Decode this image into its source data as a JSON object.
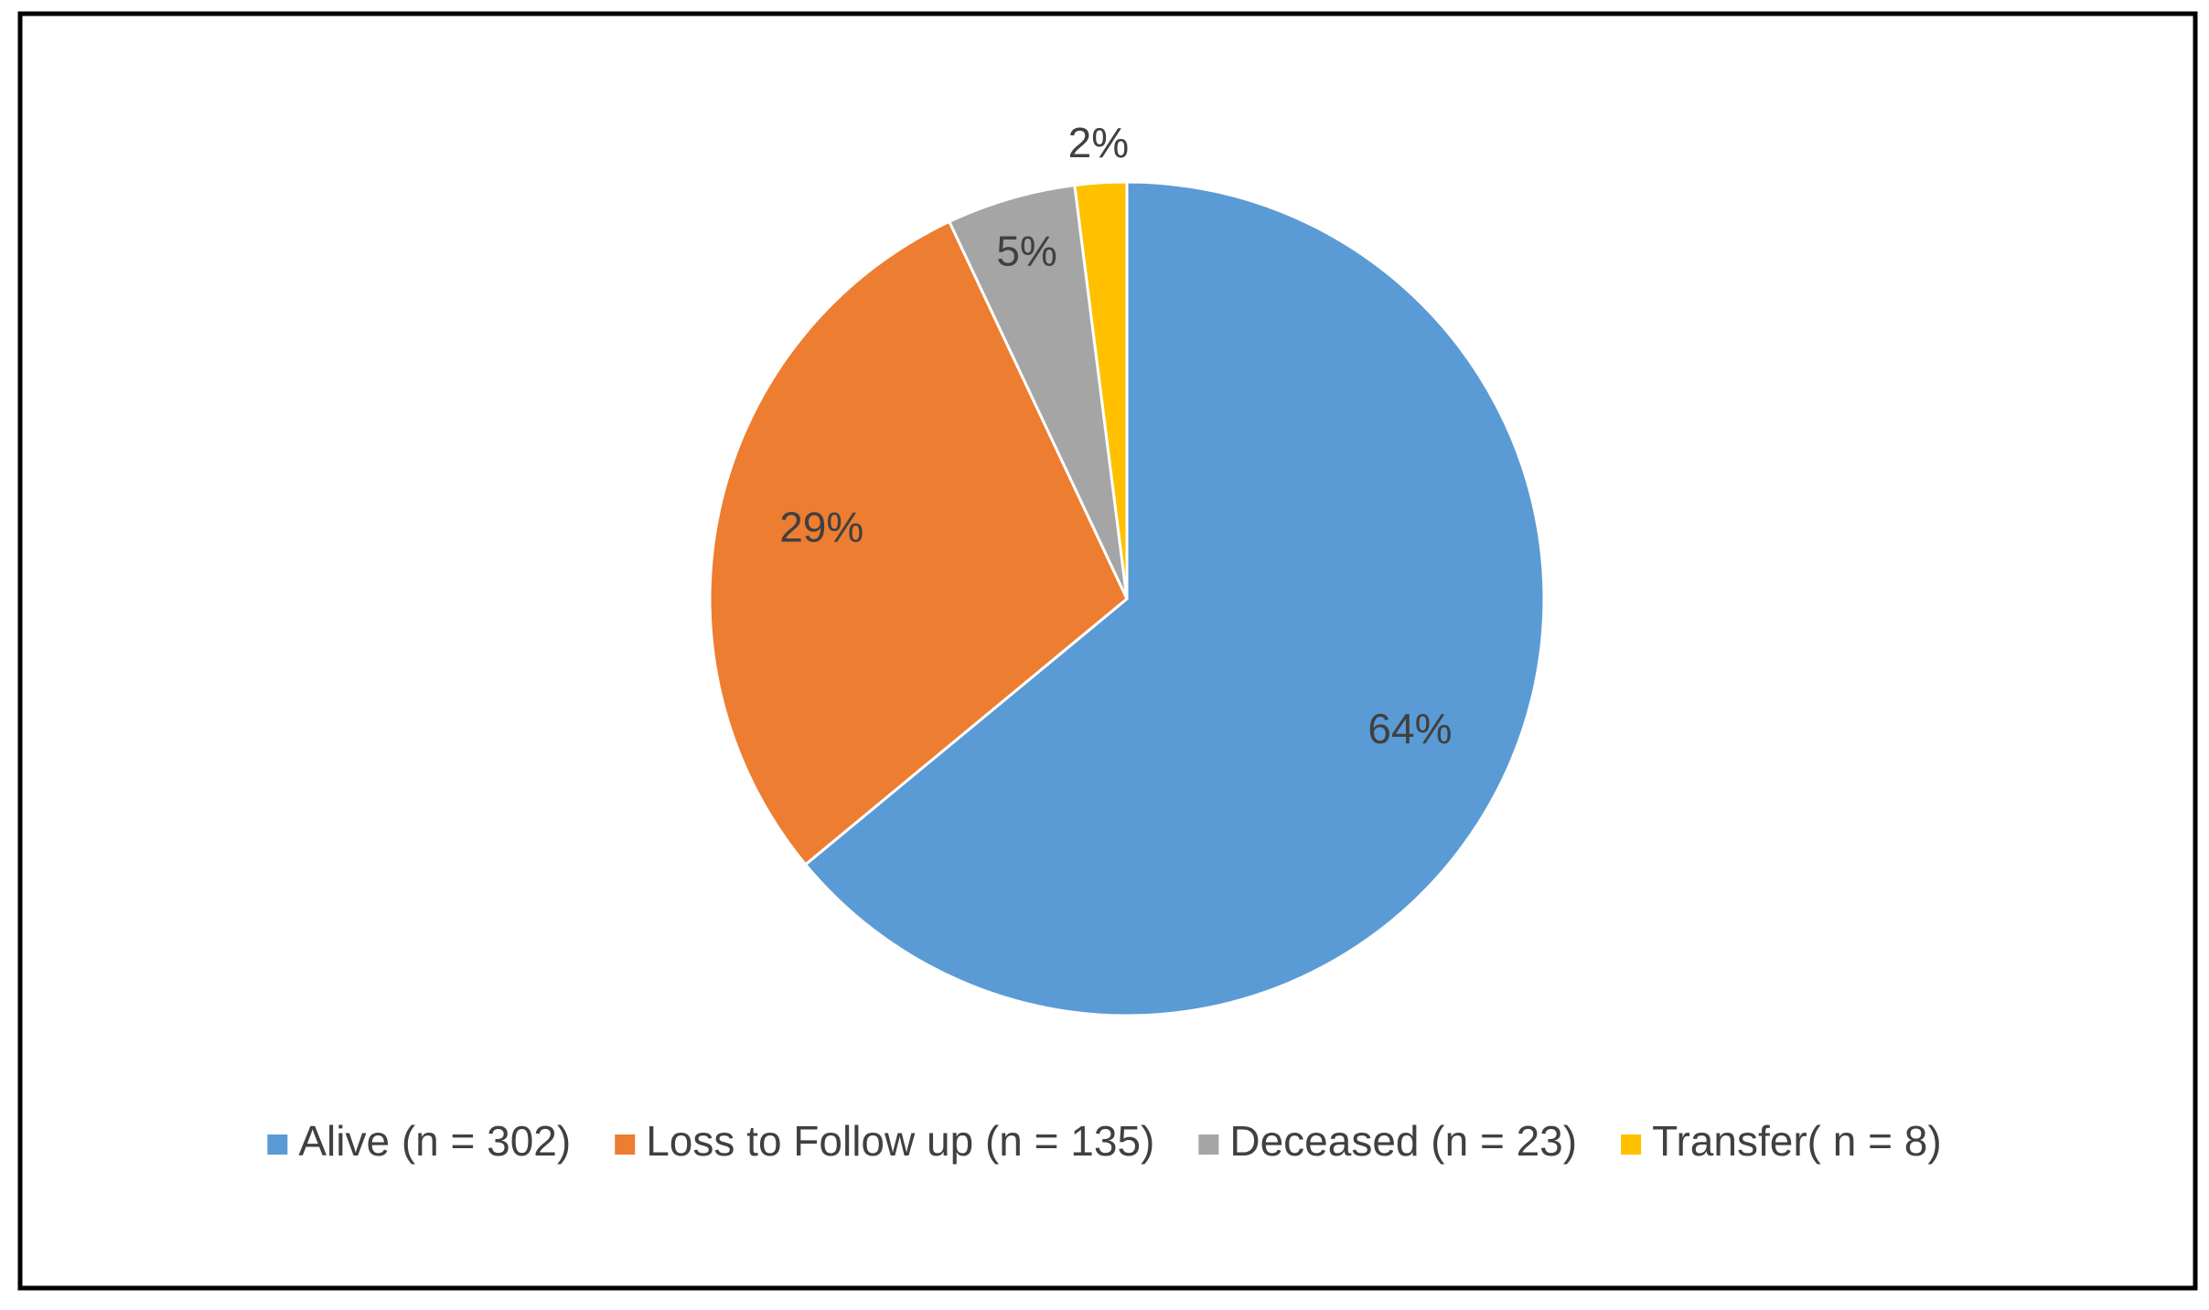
{
  "chart_data": {
    "type": "pie",
    "categories": [
      "Alive (n = 302)",
      "Loss to Follow up (n = 135)",
      "Deceased (n = 23)",
      "Transfer( n = 8)"
    ],
    "values": [
      64,
      29,
      5,
      2
    ],
    "value_labels": [
      "64%",
      "29%",
      "5%",
      "2%"
    ],
    "colors": [
      "#5b9bd5",
      "#ed7d31",
      "#a5a5a5",
      "#ffc000"
    ],
    "legend": "bottom"
  }
}
